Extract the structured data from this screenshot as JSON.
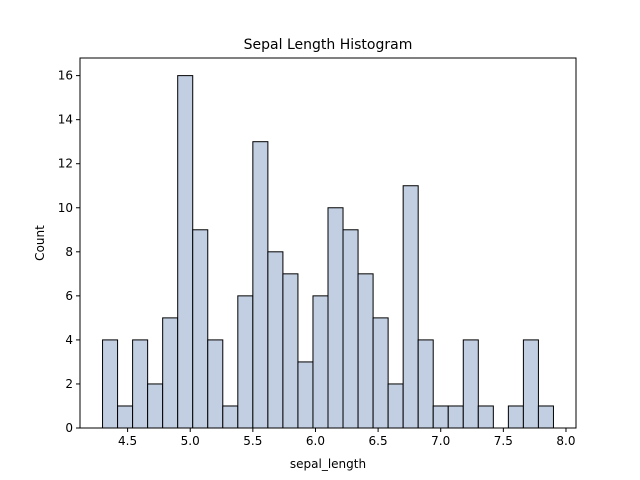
{
  "chart_data": {
    "type": "bar",
    "title": "Sepal Length Histogram",
    "xlabel": "sepal_length",
    "ylabel": "Count",
    "xlim": [
      4.12,
      8.08
    ],
    "ylim": [
      0,
      16.8
    ],
    "bin_start": 4.3,
    "bin_width": 0.12,
    "values": [
      4,
      1,
      4,
      2,
      5,
      16,
      9,
      4,
      1,
      6,
      13,
      8,
      7,
      3,
      6,
      10,
      9,
      7,
      5,
      2,
      11,
      4,
      1,
      1,
      4,
      1,
      0,
      1,
      4,
      1
    ],
    "x_ticks": [
      "4.5",
      "5.0",
      "5.5",
      "6.0",
      "6.5",
      "7.0",
      "7.5",
      "8.0"
    ],
    "y_ticks": [
      "0",
      "2",
      "4",
      "6",
      "8",
      "10",
      "12",
      "14",
      "16"
    ],
    "bar_color": "#c2cfe2",
    "edge_color": "#000000",
    "grid": false
  }
}
